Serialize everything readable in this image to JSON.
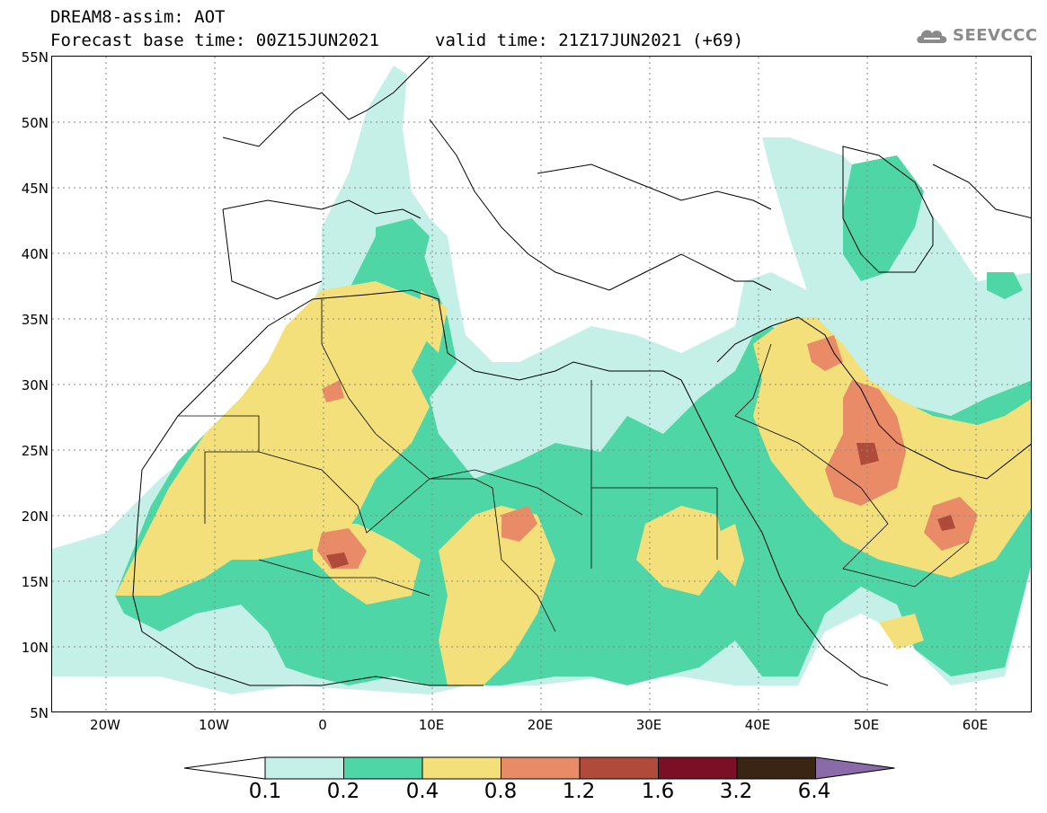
{
  "header": {
    "line1": "DREAM8-assim: AOT",
    "line2": "Forecast base time: 00Z15JUN2021",
    "valid": "valid time: 21Z17JUN2021 (+69)"
  },
  "logo": {
    "text": "SEEVCCC"
  },
  "axes": {
    "lat_labels": [
      "55N",
      "50N",
      "45N",
      "40N",
      "35N",
      "30N",
      "25N",
      "20N",
      "15N",
      "10N",
      "5N"
    ],
    "lon_labels": [
      "20W",
      "10W",
      "0",
      "10E",
      "20E",
      "30E",
      "40E",
      "50E",
      "60E"
    ]
  },
  "colorbar": {
    "labels": [
      "0.1",
      "0.2",
      "0.4",
      "0.8",
      "1.2",
      "1.6",
      "3.2",
      "6.4"
    ],
    "colors": [
      "#ffffff",
      "#c5f0e8",
      "#4ed6a6",
      "#f3e07a",
      "#e98b66",
      "#b04a3a",
      "#7a0f25",
      "#3a2414",
      "#8a6aa8"
    ]
  },
  "map": {
    "variable": "AOT",
    "lat_range": [
      5,
      55
    ],
    "lon_range": [
      -25,
      65
    ],
    "grid": "dotted"
  }
}
